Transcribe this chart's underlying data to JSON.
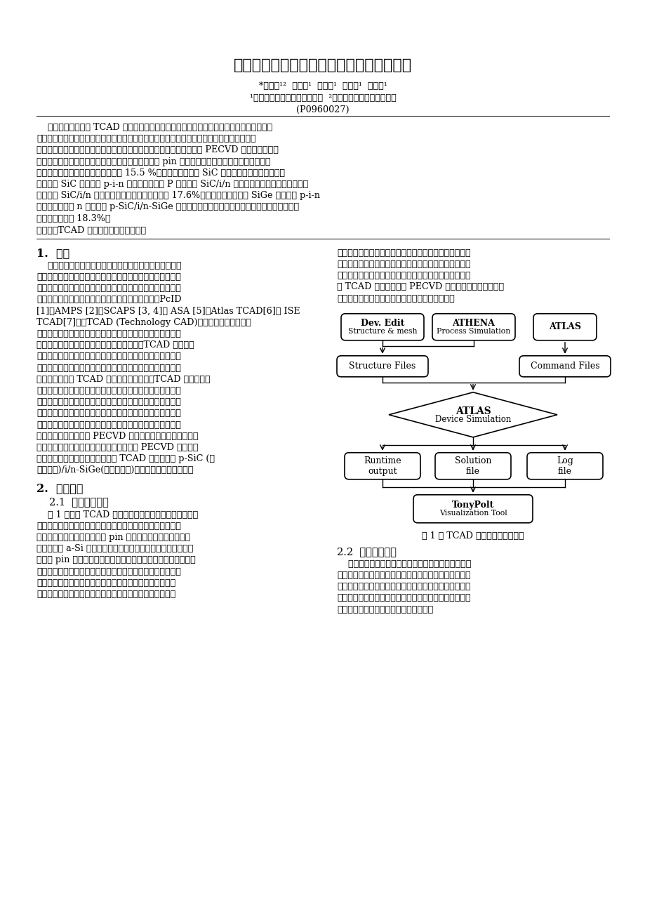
{
  "title": "新型矽基材料薄膜太陽電池設計與數值分析",
  "authors": "*逢水春¹²  王騰達¹  王朝傑¹  沈昭德¹  陳家富¹",
  "affiliations": "¹明道大學材料科學與工程學系  ²明道大學太陽光電研究中心",
  "project_id": "(P0960027)",
  "keywords": "關鍵字：TCAD 模擬、非晶矽、太陽電池",
  "sec1_title": "1.  簡介",
  "sec2_title": "2.  實驗設計",
  "sec21_title": "2.1  模擬模組建立",
  "sec22_title": "2.2  矽基薄膜建立",
  "fig1_caption": "圖 1 以 TCAD 模擬太陽電池流程圖",
  "abstract_lines": [
    "    在本論中，我們以 TCAD 軟體建立新型矽基薄膜太陽電池模擬模組，並討論各種高效率的",
    "關鍵參數對於元件效率的影響。我們也建立一個實際沉積矽膜製程特性與模擬模組互相驗證平",
    "台，完成矽膜參數資料及新型矽基薄膜太陽電池結構之建置，提供日後 PECVD 製程實驗時之參",
    "考依據。在薄膜太陽電池模擬研究中，我們成功建立 pin 結構薄膜太陽電池模擬模組，最佳化結",
    "構模擬結果，薄膜太陽電池效率可達 15.5 %。新建寬能隙材料 SiC 薄膜特性之模擬參數，以寬",
    "能隙材料 SiC 薄膜取代 p-i-n 薄膜太陽電池中 P 層，探討 SiC/i/n 結構薄膜太陽電池特性之變化。",
    "這種新型 SiC/i/n 結構太陽電池轉換效率可提升至 17.6%。最後以窄能隙材料 SiGe 薄膜取代 p-i-n",
    "薄膜太陽電池中 n 層，探討 p-SiC/i/n-SiGe 結構薄膜太陽電池特性，此種結構太陽電池轉換效率",
    "可進一步提升至 18.3%。"
  ],
  "sec1_lines": [
    "    近年來由於石油價格居高不下及節能減碳意識抬頭，太陽",
    "能產業受到高度的矚目，對於太陽電池材料、製程及元件模擬",
    "優化設計是提升太陽電池效率及降低成本最有效方法之一。目",
    "前受學術界及工業界所重視的太陽電池模擬軟體有：PcID",
    "[1]、AMPS [2]、SCAPS [3, 4]及 ASA [5]、Atlas TCAD[6]及 ISE",
    "TCAD[7]等。TCAD (Technology CAD)是一種元件與製程方面",
    "的電腦輔助設計與模擬軟體，具有大量減少製程成本與時間的",
    "優點，是半導體研發過程中不可或缺的工具。TCAD 的應用領",
    "域包括所有和物理現象有關而且是我們必須瞭解的事物，如半",
    "導體製程、元件物理、電路缺陷等，凡是像電磁、機械方面的",
    "物理現象，都是 TCAD 的應用領域，因此，TCAD 可以稱為物",
    "理基礎上的模擬。本研究項目之目的為透過太陽電池材料及元",
    "件之優化模擬，建立可靠準確之薄膜太陽電池模組，縮短研發",
    "摸索時間，節省研發成本，將模擬優化結果回饋給薄膜太陽電",
    "池製程作為製作高效率薄膜太陽電池參數之依據，藉由矽薄膜",
    "特性的探討，可以了解 PECVD 沉積機制、沉積參數對薄膜特",
    "性的影響、太陽電池的設計理論。協助開發 PECVD 沉積寬能",
    "隙及窄能隙矽薄膜製程技術，建立 TCAD 模擬軟體的 p-SiC (寬",
    "能隙材料)/i/n-SiGe(窄能隙材料)薄膜太陽電池模擬模組。"
  ],
  "sec21_lines": [
    "    圖 1 顯示以 TCAD 軟體模擬太陽電池製程與元件之流程",
    "圖，首先我們要針對製程所有條件及參數做定義，這些需要有",
    "準確的量測數據當基礎，建立 pin 薄膜太陽電池模擬模組須分",
    "別定義三層 a-Si 材料特性參數，再定義上下電極位置及特性。",
    "在定義 pin 非晶矽薄膜參數中，我們需建立包括：矽膜能隙、折",
    "射率、消光係數、吸收係數、電子電洞移動率等，我們也須針",
    "對矽膜的缺陷組態進行定義及測試，最後是建立結構參數設",
    "定。經過軟體的模擬與最佳化，緊接著輸入元件之各結構參"
  ],
  "sec21_right_lines": [
    "數，軟體針對元件之設計及內部動作模擬，最後再對元件",
    "特性做規範及量測模擬，針對這些結果再修正製程參數即",
    "可得到最佳化之元件製程及特性。本計畫所執行的元件均",
    "以 TCAD 軟體模擬搭配 PECVD 實際製作，模擬與實驗兩",
    "者互相比較驗證，以其得到最佳化薄膜太陽電池。"
  ],
  "sec22_lines": [
    "    我們過去已經建立了完整程式參數及矽膜光學，結構",
    "及電性之所有資料，我們可以準確的下定義及提供完整資",
    "料供模擬動作，我們也有足夠的能力改變製程參數來配合",
    "模擬的結果，相信可以將模擬與製程實驗做更正確的結合",
    "及應用，建立薄膜參數模組如表一所示。"
  ],
  "bg_color": "#ffffff",
  "text_color": "#000000"
}
